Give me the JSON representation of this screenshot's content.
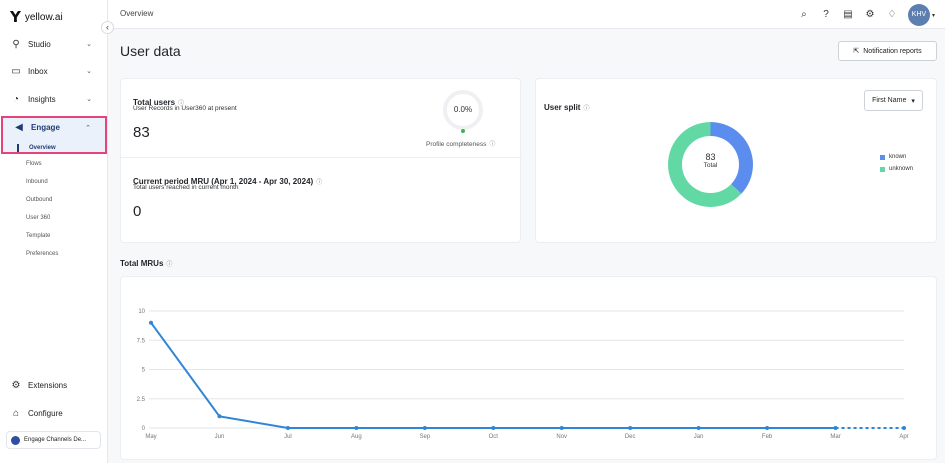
{
  "brand": {
    "name": "yellow.ai"
  },
  "sidebar": {
    "items": [
      {
        "label": "Studio",
        "icon": "studio-icon"
      },
      {
        "label": "Inbox",
        "icon": "inbox-icon"
      },
      {
        "label": "Insights",
        "icon": "insights-icon"
      },
      {
        "label": "Engage",
        "icon": "megaphone-icon"
      }
    ],
    "engage_sub": [
      "Overview",
      "Flows",
      "Inbound",
      "Outbound",
      "User 360",
      "Template",
      "Preferences"
    ],
    "bottom": [
      {
        "label": "Extensions",
        "icon": "extensions-icon"
      },
      {
        "label": "Configure",
        "icon": "configure-icon"
      }
    ],
    "bot_card": "Engage Channels De..."
  },
  "topbar": {
    "breadcrumb": "Overview",
    "avatar": "KHV"
  },
  "page": {
    "title": "User data",
    "notification_button": "Notification reports"
  },
  "total_users": {
    "title": "Total users",
    "subtitle": "User Records in User360 at present",
    "value": "83",
    "completeness_value": "0.0%",
    "completeness_label": "Profile completeness"
  },
  "mru": {
    "title": "Current period MRU (Apr 1, 2024 - Apr 30, 2024)",
    "subtitle": "Total users reached in current month",
    "value": "0"
  },
  "user_split": {
    "title": "User split",
    "dropdown": "First Name",
    "center_value": "83",
    "center_label": "Total",
    "legend": [
      {
        "label": "known",
        "color": "#5b8def"
      },
      {
        "label": "unknown",
        "color": "#62d9a4"
      }
    ]
  },
  "total_mrus_title": "Total MRUs",
  "chart_data": {
    "type": "line",
    "categories": [
      "May",
      "Jun",
      "Jul",
      "Aug",
      "Sep",
      "Oct",
      "Nov",
      "Dec",
      "Jan",
      "Feb",
      "Mar",
      "Apr"
    ],
    "values": [
      9,
      1,
      0,
      0,
      0,
      0,
      0,
      0,
      0,
      0,
      0,
      0
    ],
    "ylim": [
      0,
      10
    ],
    "yticks": [
      "0",
      "2.5",
      "5",
      "7.5",
      "10"
    ],
    "color": "#2f86d6",
    "grid": true
  }
}
